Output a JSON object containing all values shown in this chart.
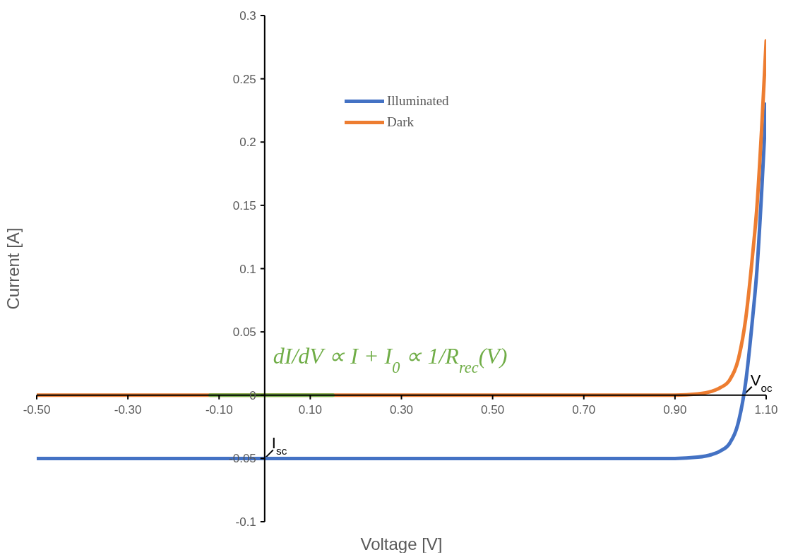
{
  "chart_data": {
    "type": "line",
    "xlabel": "Voltage [V]",
    "ylabel": "Current [A]",
    "xlim": [
      -0.5,
      1.1
    ],
    "ylim": [
      -0.1,
      0.3
    ],
    "xticks": [
      {
        "value": -0.5,
        "label": "-0.50"
      },
      {
        "value": -0.3,
        "label": "-0.30"
      },
      {
        "value": -0.1,
        "label": "-0.10"
      },
      {
        "value": 0.1,
        "label": "0.10"
      },
      {
        "value": 0.3,
        "label": "0.30"
      },
      {
        "value": 0.5,
        "label": "0.50"
      },
      {
        "value": 0.7,
        "label": "0.70"
      },
      {
        "value": 0.9,
        "label": "0.90"
      },
      {
        "value": 1.1,
        "label": "1.10"
      }
    ],
    "yticks": [
      -0.1,
      -0.05,
      0,
      0.05,
      0.1,
      0.15,
      0.2,
      0.25,
      0.3
    ],
    "grid": false,
    "legend": "top left",
    "marker": "none",
    "line_style": "solid",
    "series": [
      {
        "name": "Illuminated",
        "color": "#4472c4",
        "x": [
          -0.5,
          0,
          0.5,
          0.9,
          0.95,
          0.98,
          1.0,
          1.02,
          1.04,
          1.055,
          1.07,
          1.08,
          1.09,
          1.1
        ],
        "values": [
          -0.05,
          -0.05,
          -0.05,
          -0.05,
          -0.049,
          -0.047,
          -0.044,
          -0.038,
          -0.02,
          0.01,
          0.06,
          0.1,
          0.16,
          0.23
        ]
      },
      {
        "name": "Dark",
        "color": "#ed7d31",
        "x": [
          -0.5,
          0,
          0.5,
          0.9,
          0.95,
          0.98,
          1.0,
          1.02,
          1.04,
          1.055,
          1.07,
          1.08,
          1.09,
          1.1
        ],
        "values": [
          0,
          0,
          0,
          0,
          0.001,
          0.003,
          0.006,
          0.012,
          0.03,
          0.06,
          0.11,
          0.15,
          0.21,
          0.28
        ]
      },
      {
        "color": "#70ad47",
        "x": [
          -0.12,
          0.15
        ],
        "values": [
          0,
          0
        ]
      }
    ],
    "annotations": [
      {
        "text": "I$_{sc}$",
        "x": 0,
        "y": -0.05
      },
      {
        "text": "V$_{oc}$",
        "x": 1.05,
        "y": 0
      },
      "dI/dV ∝ I + I$_{0}$ ∝ 1/R$_{rec}$(V)"
    ]
  }
}
